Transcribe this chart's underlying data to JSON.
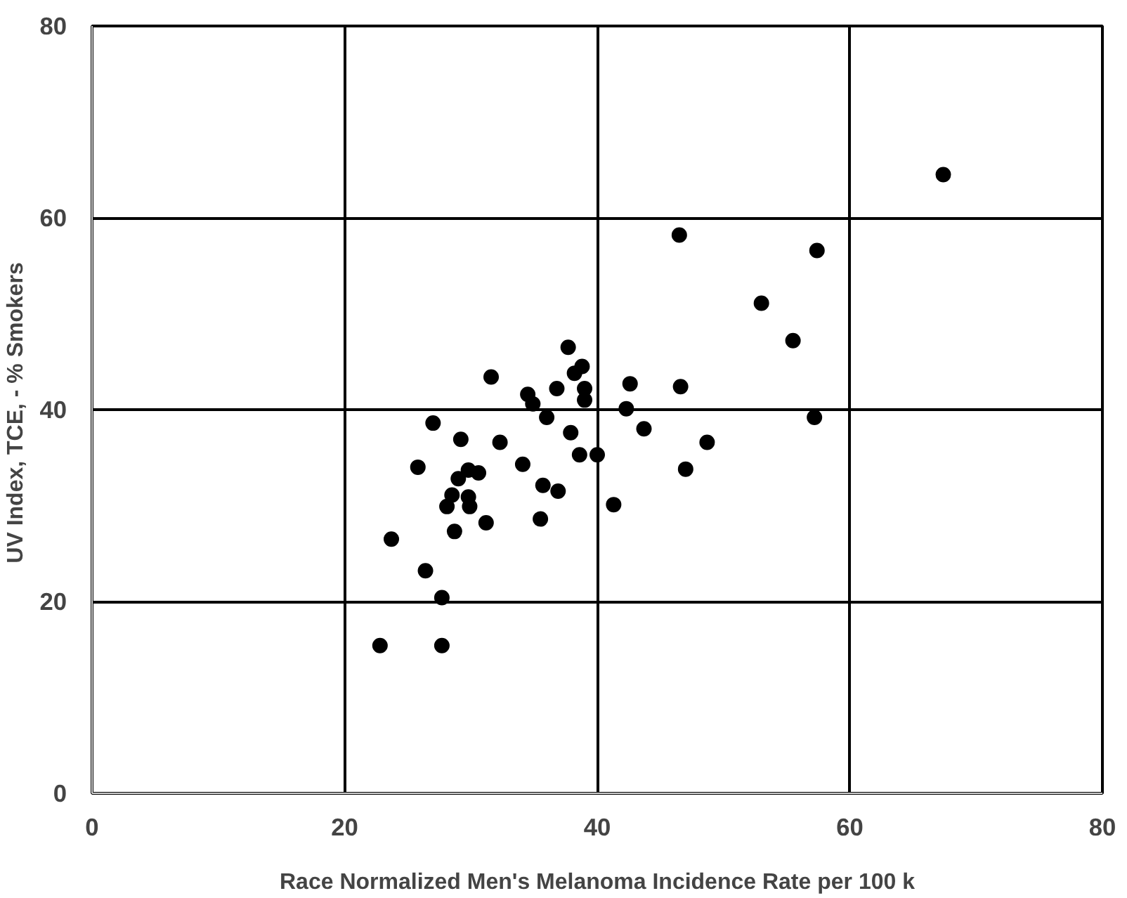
{
  "chart_data": {
    "type": "scatter",
    "xlabel": "Race Normalized Men's Melanoma Incidence Rate per 100 k",
    "ylabel": "UV Index, TCE,  - % Smokers",
    "x": [
      67.4,
      46.5,
      57.4,
      53.0,
      55.5,
      57.2,
      37.7,
      38.8,
      38.2,
      31.6,
      42.6,
      46.6,
      36.8,
      39.0,
      34.5,
      34.9,
      39.0,
      42.3,
      36.0,
      27.0,
      43.7,
      37.9,
      29.2,
      32.3,
      48.7,
      38.6,
      40.0,
      25.8,
      34.1,
      47.0,
      29.8,
      30.6,
      29.0,
      35.7,
      36.9,
      28.5,
      29.8,
      28.1,
      29.9,
      41.3,
      35.5,
      31.2,
      28.7,
      23.7,
      26.4,
      27.7,
      22.8,
      27.7
    ],
    "values": [
      64.5,
      58.2,
      56.6,
      51.1,
      47.2,
      39.2,
      46.5,
      44.5,
      43.8,
      43.4,
      42.7,
      42.4,
      42.2,
      42.2,
      41.6,
      40.6,
      41.0,
      40.1,
      39.2,
      38.6,
      38.0,
      37.6,
      36.9,
      36.6,
      36.6,
      35.3,
      35.3,
      34.0,
      34.3,
      33.8,
      33.7,
      33.4,
      32.8,
      32.1,
      31.5,
      31.1,
      30.9,
      29.9,
      29.9,
      30.1,
      28.6,
      28.2,
      27.3,
      26.5,
      23.2,
      20.4,
      15.4,
      15.4
    ],
    "color": "#000000",
    "marker": "circle",
    "xlim": [
      0,
      80
    ],
    "ylim": [
      0,
      80
    ],
    "xticks": [
      0,
      20,
      40,
      60,
      80
    ],
    "yticks": [
      0,
      20,
      40,
      60,
      80
    ],
    "grid": true
  }
}
